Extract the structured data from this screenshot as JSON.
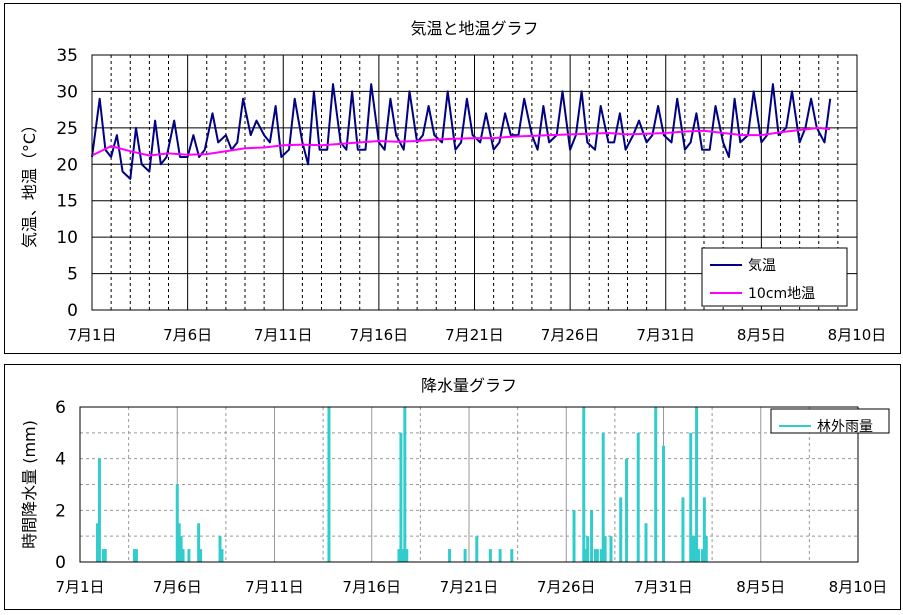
{
  "chart_data": [
    {
      "type": "line",
      "title": "気温と地温グラフ",
      "ylabel": "気温、地温（°C）",
      "xlabel": "",
      "ylim": [
        0,
        35
      ],
      "yticks": [
        0,
        5,
        10,
        15,
        20,
        25,
        30,
        35
      ],
      "x_tick_labels": [
        "7月1日",
        "7月6日",
        "7月11日",
        "7月16日",
        "7月21日",
        "7月26日",
        "7月31日",
        "8月5日",
        "8月10日"
      ],
      "x_unit": "day index (0 = 7月1日)",
      "xlim": [
        0,
        40
      ],
      "grid": true,
      "legend": "bottom-right",
      "series": [
        {
          "name": "気温",
          "color": "#000080",
          "x": [
            0,
            0.4,
            0.7,
            1.0,
            1.3,
            1.6,
            2.0,
            2.3,
            2.6,
            3.0,
            3.3,
            3.6,
            3.9,
            4.3,
            4.6,
            5.0,
            5.3,
            5.6,
            5.9,
            6.3,
            6.6,
            7.0,
            7.3,
            7.6,
            7.9,
            8.3,
            8.6,
            9.0,
            9.3,
            9.6,
            9.9,
            10.3,
            10.6,
            11.0,
            11.3,
            11.6,
            11.9,
            12.3,
            12.6,
            13.0,
            13.3,
            13.6,
            13.9,
            14.3,
            14.6,
            15.0,
            15.3,
            15.6,
            15.9,
            16.3,
            16.6,
            17.0,
            17.3,
            17.6,
            17.9,
            18.3,
            18.6,
            19.0,
            19.3,
            19.6,
            19.9,
            20.3,
            20.6,
            21.0,
            21.3,
            21.6,
            21.9,
            22.3,
            22.6,
            23.0,
            23.3,
            23.6,
            23.9,
            24.3,
            24.6,
            25.0,
            25.3,
            25.6,
            25.9,
            26.3,
            26.6,
            27.0,
            27.3,
            27.6,
            27.9,
            28.3,
            28.6,
            29.0,
            29.3,
            29.6,
            29.9,
            30.3,
            30.6,
            31.0,
            31.3,
            31.6,
            31.9,
            32.3,
            32.6,
            33.0,
            33.3,
            33.6,
            33.9,
            34.3,
            34.6,
            35.0,
            35.3,
            35.6,
            35.9,
            36.3,
            36.6,
            37.0,
            37.3,
            37.6,
            37.9,
            38.3,
            38.6
          ],
          "y": [
            21,
            29,
            22,
            21,
            24,
            19,
            18,
            25,
            20,
            19,
            26,
            20,
            21,
            26,
            21,
            21,
            24,
            21,
            22,
            27,
            23,
            24,
            22,
            23,
            29,
            24,
            26,
            24,
            23,
            28,
            21,
            22,
            29,
            23,
            20,
            30,
            22,
            22,
            31,
            23,
            22,
            30,
            22,
            22,
            31,
            23,
            22,
            29,
            24,
            22,
            30,
            23,
            24,
            28,
            24,
            23,
            30,
            22,
            23,
            29,
            24,
            23,
            27,
            22,
            23,
            27,
            24,
            24,
            29,
            24,
            22,
            28,
            23,
            24,
            30,
            22,
            24,
            30,
            23,
            22,
            28,
            23,
            23,
            27,
            22,
            24,
            26,
            23,
            24,
            28,
            24,
            23,
            29,
            22,
            23,
            27,
            22,
            22,
            28,
            23,
            21,
            29,
            23,
            24,
            30,
            23,
            24,
            31,
            24,
            25,
            30,
            23,
            25,
            29,
            25,
            23,
            29
          ]
        },
        {
          "name": "10cm地温",
          "color": "#ff00ff",
          "x": [
            0,
            1,
            2,
            3,
            4,
            5,
            6,
            7,
            8,
            9,
            10,
            11,
            12,
            13,
            14,
            15,
            16,
            17,
            18,
            19,
            20,
            21,
            22,
            23,
            24,
            25,
            26,
            27,
            28,
            29,
            30,
            31,
            32,
            33,
            34,
            35,
            36,
            37,
            38,
            38.6
          ],
          "y": [
            21.2,
            22.5,
            21.8,
            21.2,
            21.5,
            21.3,
            21.4,
            21.8,
            22.2,
            22.3,
            22.6,
            22.7,
            22.6,
            22.8,
            23.0,
            23.2,
            23.1,
            23.2,
            23.4,
            23.5,
            23.6,
            23.6,
            23.8,
            23.9,
            24.0,
            24.1,
            24.2,
            24.3,
            24.1,
            24.2,
            24.3,
            24.5,
            24.6,
            24.3,
            24.0,
            24.0,
            24.4,
            24.7,
            25.0,
            24.8
          ]
        }
      ]
    },
    {
      "type": "bar",
      "title": "降水量グラフ",
      "ylabel": "時間降水量 (mm)",
      "xlabel": "",
      "ylim": [
        0,
        6
      ],
      "yticks": [
        0,
        2,
        4,
        6
      ],
      "x_tick_labels": [
        "7月1日",
        "7月6日",
        "7月11日",
        "7月16日",
        "7月21日",
        "7月26日",
        "7月31日",
        "8月5日",
        "8月10日"
      ],
      "x_unit": "day index (0 = 7月1日)",
      "xlim": [
        0,
        40
      ],
      "grid": true,
      "legend": "top-right",
      "series": [
        {
          "name": "林外雨量",
          "color": "#33cccc",
          "x": [
            0.9,
            1.0,
            1.2,
            1.3,
            2.8,
            2.9,
            5.0,
            5.1,
            5.2,
            5.3,
            5.6,
            6.1,
            6.2,
            7.2,
            7.3,
            12.8,
            16.4,
            16.5,
            16.6,
            16.7,
            16.8,
            19.0,
            19.8,
            20.4,
            21.1,
            21.6,
            22.2,
            25.4,
            25.9,
            26.0,
            26.1,
            26.3,
            26.5,
            26.6,
            26.8,
            26.9,
            27.0,
            27.3,
            27.8,
            28.1,
            28.7,
            29.1,
            29.6,
            30.0,
            31.0,
            31.4,
            31.5,
            31.6,
            31.7,
            31.8,
            32.0,
            32.1,
            32.2
          ],
          "values": [
            1.5,
            4.0,
            0.5,
            0.5,
            0.5,
            0.5,
            3.0,
            1.5,
            1.0,
            0.5,
            0.5,
            1.5,
            0.5,
            1.0,
            0.5,
            6.0,
            0.5,
            5.0,
            0.5,
            6.0,
            0.5,
            0.5,
            0.5,
            1.0,
            0.5,
            0.5,
            0.5,
            2.0,
            6.0,
            0.5,
            1.0,
            2.0,
            0.5,
            0.5,
            0.5,
            5.0,
            1.0,
            1.0,
            2.5,
            4.0,
            5.0,
            1.5,
            6.0,
            4.5,
            2.5,
            5.0,
            1.0,
            1.0,
            6.0,
            0.5,
            0.5,
            2.5,
            1.0
          ]
        }
      ]
    }
  ]
}
